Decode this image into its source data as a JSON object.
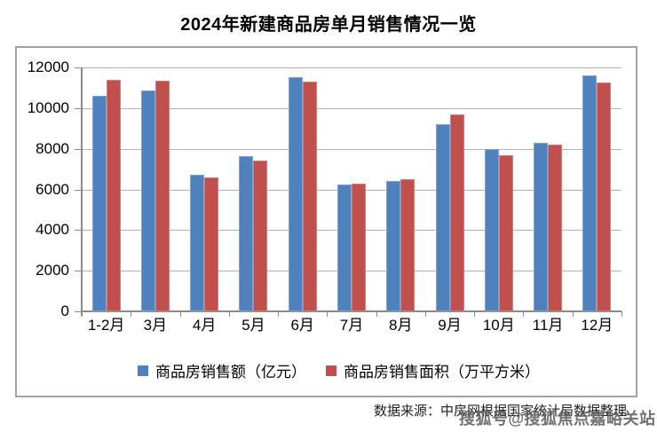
{
  "title": "2024年新建商品房单月销售情况一览",
  "chart_data": {
    "type": "bar",
    "categories": [
      "1-2月",
      "3月",
      "4月",
      "5月",
      "6月",
      "7月",
      "8月",
      "9月",
      "10月",
      "11月",
      "12月"
    ],
    "series": [
      {
        "name": "商品房销售额（亿元）",
        "color": "#4F81BD",
        "values": [
          10600,
          10850,
          6700,
          7650,
          11530,
          6230,
          6400,
          9200,
          8000,
          8300,
          11600
        ]
      },
      {
        "name": "商品房销售面积（万平方米）",
        "color": "#C0504D",
        "values": [
          11400,
          11350,
          6600,
          7400,
          11300,
          6280,
          6500,
          9700,
          7700,
          8200,
          11280
        ]
      }
    ],
    "ylim": [
      0,
      12000
    ],
    "yticks": [
      0,
      2000,
      4000,
      6000,
      8000,
      10000,
      12000
    ],
    "xlabel": "",
    "ylabel": "",
    "grid": true,
    "legend_position": "bottom"
  },
  "footer": {
    "source_text": "数据来源：中房网根据国家统计局数据整理"
  },
  "watermark": {
    "text": "搜狐号@搜狐焦点嘉峪关站"
  },
  "colors": {
    "series_blue": "#4F81BD",
    "series_red": "#C0504D",
    "gridline": "#B3B3B3",
    "axis": "#8A8A8A",
    "frame_border": "#A3A3A3",
    "title_text": "#000000",
    "watermark_gray": "#5F5F5F"
  }
}
